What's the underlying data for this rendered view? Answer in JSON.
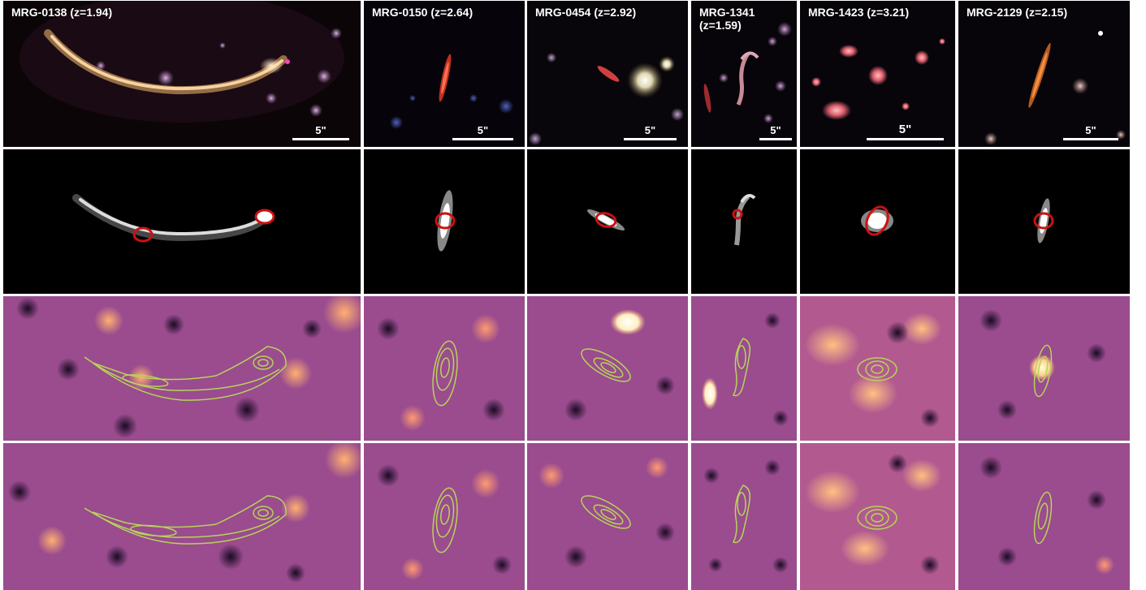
{
  "figure": {
    "columns": [
      {
        "id": "mrg-0138",
        "title": "MRG-0138 (z=1.94)",
        "scale_label": "5\""
      },
      {
        "id": "mrg-0150",
        "title": "MRG-0150 (z=2.64)",
        "scale_label": "5\""
      },
      {
        "id": "mrg-0454",
        "title": "MRG-0454 (z=2.92)",
        "scale_label": "5\""
      },
      {
        "id": "mrg-1341",
        "title": "MRG-1341\n(z=1.59)",
        "scale_label": "5\""
      },
      {
        "id": "mrg-1423",
        "title": "MRG-1423 (z=3.21)",
        "scale_label": "5\""
      },
      {
        "id": "mrg-2129",
        "title": "MRG-2129 (z=2.15)",
        "scale_label": "5\""
      }
    ],
    "rows": [
      "color-image",
      "source-model",
      "map-with-contours",
      "residual-map-with-contours"
    ],
    "colors": {
      "background": "#ffffff",
      "panel_dark": "#000000",
      "map_base": "#9a4c8e",
      "map_dark": "#2a0f36",
      "map_bright": "#ffb070",
      "contour": "#b8d35a",
      "aperture": "#cc1111",
      "arc_color": "#f4c38a"
    }
  }
}
